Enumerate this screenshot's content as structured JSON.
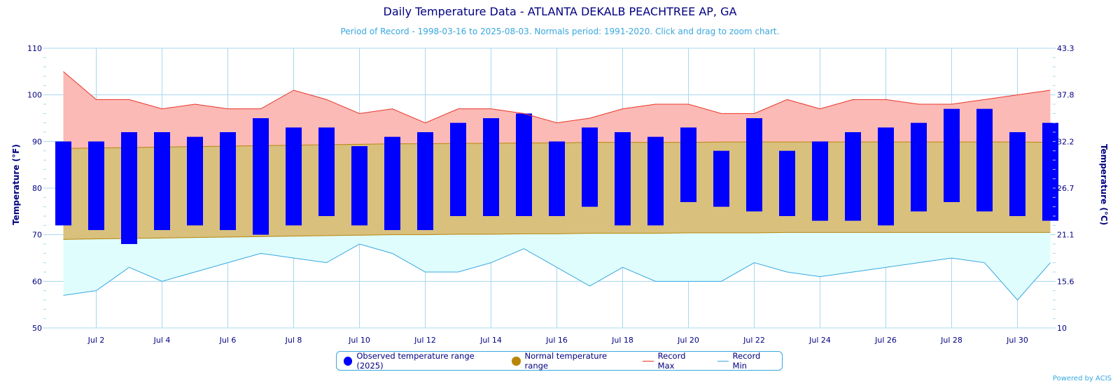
{
  "title": "Daily Temperature Data - ATLANTA DEKALB PEACHTREE AP, GA",
  "subtitle": "Period of Record - 1998-03-16 to 2025-08-03. Normals period: 1991-2020. Click and drag to zoom chart.",
  "powered_by": "Powered by ACIS",
  "legend": {
    "observed": "Observed temperature range (2025)",
    "normal": "Normal temperature range",
    "record_max": "Record Max",
    "record_min": "Record Min"
  },
  "colors": {
    "observed": "#0000ff",
    "normal_fill": "#d9c07d",
    "normal_line": "#b8860b",
    "record_max_line": "#e8342a",
    "record_max_fill": "#fbbab5",
    "record_min_line": "#37a7e0",
    "record_min_fill": "#e0fdfd",
    "axis_text": "#000080",
    "grid": "#a8d8f0"
  },
  "chart_data": {
    "type": "bar",
    "title": "Daily Temperature Data - ATLANTA DEKALB PEACHTREE AP, GA",
    "ylabel": "Temperature (°F)",
    "y2label": "Temperature (°C)",
    "ylim": [
      50,
      110
    ],
    "y_ticks": [
      50,
      60,
      70,
      80,
      90,
      100,
      110
    ],
    "y2_ticks": [
      "10",
      "15.6",
      "21.1",
      "26.7",
      "32.2",
      "37.8",
      "43.3"
    ],
    "x_tick_labels": [
      "Jul 2",
      "Jul 4",
      "Jul 6",
      "Jul 8",
      "Jul 10",
      "Jul 12",
      "Jul 14",
      "Jul 16",
      "Jul 18",
      "Jul 20",
      "Jul 22",
      "Jul 24",
      "Jul 26",
      "Jul 28",
      "Jul 30"
    ],
    "x_tick_days": [
      2,
      4,
      6,
      8,
      10,
      12,
      14,
      16,
      18,
      20,
      22,
      24,
      26,
      28,
      30
    ],
    "x_days": [
      1,
      2,
      3,
      4,
      5,
      6,
      7,
      8,
      9,
      10,
      11,
      12,
      13,
      14,
      15,
      16,
      17,
      18,
      19,
      20,
      21,
      22,
      23,
      24,
      25,
      26,
      27,
      28,
      29,
      30,
      31
    ],
    "grid": true,
    "legend_position": "bottom-center",
    "series": [
      {
        "name": "Observed temperature range (2025)",
        "type": "columnrange",
        "low": [
          72,
          71,
          68,
          71,
          72,
          71,
          70,
          72,
          74,
          72,
          71,
          71,
          74,
          74,
          74,
          74,
          76,
          72,
          72,
          77,
          76,
          75,
          74,
          73,
          73,
          72,
          75,
          77,
          75,
          74,
          73
        ],
        "high": [
          90,
          90,
          92,
          92,
          91,
          92,
          95,
          93,
          93,
          89,
          91,
          92,
          94,
          95,
          96,
          90,
          93,
          92,
          91,
          93,
          88,
          95,
          88,
          90,
          92,
          93,
          94,
          97,
          97,
          92,
          94
        ]
      },
      {
        "name": "Normal temperature range",
        "type": "arearange",
        "low": [
          69,
          69.1,
          69.2,
          69.3,
          69.4,
          69.5,
          69.6,
          69.7,
          69.8,
          69.9,
          70,
          70,
          70.1,
          70.1,
          70.2,
          70.2,
          70.3,
          70.3,
          70.3,
          70.4,
          70.4,
          70.4,
          70.5,
          70.5,
          70.5,
          70.5,
          70.5,
          70.5,
          70.5,
          70.5,
          70.5
        ],
        "high": [
          88.5,
          88.6,
          88.7,
          88.8,
          88.9,
          89,
          89.1,
          89.2,
          89.3,
          89.4,
          89.5,
          89.5,
          89.6,
          89.6,
          89.7,
          89.7,
          89.8,
          89.8,
          89.8,
          89.8,
          89.9,
          89.9,
          89.9,
          89.9,
          89.9,
          89.9,
          89.9,
          89.9,
          89.9,
          89.9,
          89.8
        ]
      },
      {
        "name": "Record Max",
        "type": "line",
        "values": [
          105,
          99,
          99,
          97,
          98,
          97,
          97,
          101,
          99,
          96,
          97,
          94,
          97,
          97,
          96,
          94,
          95,
          97,
          98,
          98,
          96,
          96,
          99,
          97,
          99,
          99,
          98,
          98,
          99,
          100,
          101
        ]
      },
      {
        "name": "Record Min",
        "type": "line",
        "values": [
          57,
          58,
          63,
          60,
          62,
          64,
          66,
          65,
          64,
          68,
          66,
          62,
          62,
          64,
          67,
          63,
          59,
          63,
          60,
          60,
          60,
          64,
          62,
          61,
          62,
          63,
          64,
          65,
          64,
          56,
          64
        ]
      }
    ]
  }
}
